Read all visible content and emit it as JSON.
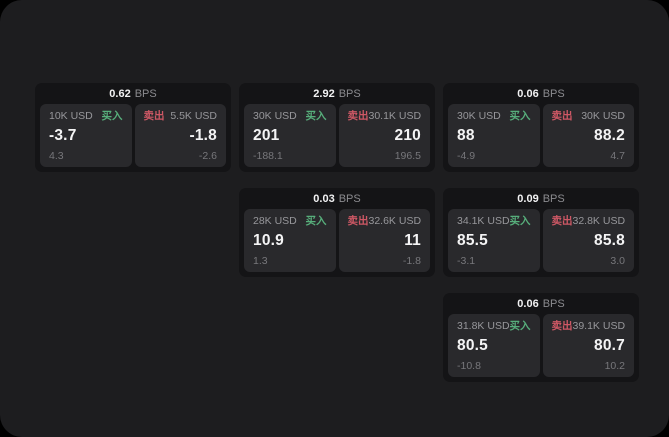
{
  "labels": {
    "bps_unit": "BPS",
    "buy": "买入",
    "sell": "卖出"
  },
  "colors": {
    "buy": "#57ae7b",
    "sell": "#ce5865",
    "surface": "#1d1d1f",
    "card": "#141416",
    "panel": "#29292c"
  },
  "cards": [
    {
      "bps": "0.62",
      "row": 1,
      "col": 1,
      "buy": {
        "amount": "10K USD",
        "value": "-3.7",
        "sub": "4.3"
      },
      "sell": {
        "amount": "5.5K USD",
        "value": "-1.8",
        "sub": "-2.6"
      }
    },
    {
      "bps": "2.92",
      "row": 1,
      "col": 2,
      "buy": {
        "amount": "30K USD",
        "value": "201",
        "sub": "-188.1"
      },
      "sell": {
        "amount": "30.1K USD",
        "value": "210",
        "sub": "196.5"
      }
    },
    {
      "bps": "0.06",
      "row": 1,
      "col": 3,
      "buy": {
        "amount": "30K USD",
        "value": "88",
        "sub": "-4.9"
      },
      "sell": {
        "amount": "30K USD",
        "value": "88.2",
        "sub": "4.7"
      }
    },
    {
      "bps": "0.03",
      "row": 2,
      "col": 2,
      "buy": {
        "amount": "28K USD",
        "value": "10.9",
        "sub": "1.3"
      },
      "sell": {
        "amount": "32.6K USD",
        "value": "11",
        "sub": "-1.8"
      }
    },
    {
      "bps": "0.09",
      "row": 2,
      "col": 3,
      "buy": {
        "amount": "34.1K USD",
        "value": "85.5",
        "sub": "-3.1"
      },
      "sell": {
        "amount": "32.8K USD",
        "value": "85.8",
        "sub": "3.0"
      }
    },
    {
      "bps": "0.06",
      "row": 3,
      "col": 3,
      "buy": {
        "amount": "31.8K USD",
        "value": "80.5",
        "sub": "-10.8"
      },
      "sell": {
        "amount": "39.1K USD",
        "value": "80.7",
        "sub": "10.2"
      }
    }
  ]
}
